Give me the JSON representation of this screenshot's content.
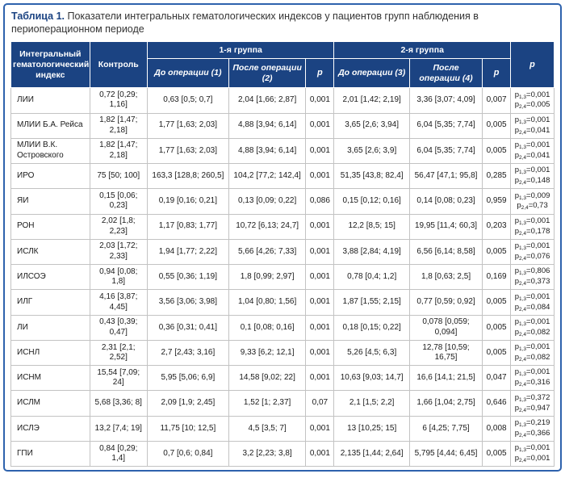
{
  "title": {
    "prefix": "Таблица 1.",
    "text": "Показатели интегральных гематологических индексов у пациентов групп наблюдения в периоперацион­ном периоде"
  },
  "colors": {
    "header_bg": "#1b4382",
    "frame_border": "#2e62ad",
    "grid_line": "#c3c3c3",
    "title_prefix": "#1b4382"
  },
  "table": {
    "columns": {
      "index": "Интегральный гематологический индекс",
      "control": "Контроль",
      "group1": "1-я группа",
      "group2": "2-я группа",
      "pre_op_1": "До операции (1)",
      "post_op_2": "После операции (2)",
      "pre_op_3": "До операции (3)",
      "post_op_4": "После операции (4)",
      "p": "p"
    },
    "p_compare": {
      "symbol": "p",
      "sub_first": "1,3",
      "sub_second": "2,4",
      "equals": "="
    },
    "rows": [
      {
        "index": "ЛИИ",
        "control": "0,72 [0,29; 1,16]",
        "g1_pre": "0,63 [0,5; 0,7]",
        "g1_post": "2,04 [1,66; 2,87]",
        "g1_p": "0,001",
        "g2_pre": "2,01 [1,42; 2,19]",
        "g2_post": "3,36 [3,07; 4,09]",
        "g2_p": "0,007",
        "p13": "0,001",
        "p24": "0,005"
      },
      {
        "index": "МЛИИ Б.А. Рейса",
        "control": "1,82 [1,47; 2,18]",
        "g1_pre": "1,77 [1,63; 2,03]",
        "g1_post": "4,88 [3,94; 6,14]",
        "g1_p": "0,001",
        "g2_pre": "3,65 [2,6; 3,94]",
        "g2_post": "6,04 [5,35; 7,74]",
        "g2_p": "0,005",
        "p13": "0,001",
        "p24": "0,041"
      },
      {
        "index": "МЛИИ В.К. Островского",
        "control": "1,82 [1,47; 2,18]",
        "g1_pre": "1,77 [1,63; 2,03]",
        "g1_post": "4,88 [3,94; 6,14]",
        "g1_p": "0,001",
        "g2_pre": "3,65 [2,6; 3,9]",
        "g2_post": "6,04 [5,35; 7,74]",
        "g2_p": "0,005",
        "p13": "0,001",
        "p24": "0,041"
      },
      {
        "index": "ИРО",
        "control": "75 [50; 100]",
        "g1_pre": "163,3 [128,8; 260,5]",
        "g1_post": "104,2 [77,2; 142,4]",
        "g1_p": "0,001",
        "g2_pre": "51,35 [43,8; 82,4]",
        "g2_post": "56,47 [47,1; 95,8]",
        "g2_p": "0,285",
        "p13": "0,001",
        "p24": "0,148"
      },
      {
        "index": "ЯИ",
        "control": "0,15 [0,06; 0,23]",
        "g1_pre": "0,19 [0,16; 0,21]",
        "g1_post": "0,13 [0,09; 0,22]",
        "g1_p": "0,086",
        "g2_pre": "0,15 [0,12; 0,16]",
        "g2_post": "0,14 [0,08; 0,23]",
        "g2_p": "0,959",
        "p13": "0,009",
        "p24": "0,73"
      },
      {
        "index": "РОН",
        "control": "2,02 [1,8; 2,23]",
        "g1_pre": "1,17 [0,83; 1,77]",
        "g1_post": "10,72 [6,13; 24,7]",
        "g1_p": "0,001",
        "g2_pre": "12,2 [8,5; 15]",
        "g2_post": "19,95 [11,4; 60,3]",
        "g2_p": "0,203",
        "p13": "0,001",
        "p24": "0,178"
      },
      {
        "index": "ИСЛК",
        "control": "2,03 [1,72; 2,33]",
        "g1_pre": "1,94 [1,77; 2,22]",
        "g1_post": "5,66 [4,26; 7,33]",
        "g1_p": "0,001",
        "g2_pre": "3,88 [2,84; 4,19]",
        "g2_post": "6,56 [6,14; 8,58]",
        "g2_p": "0,005",
        "p13": "0,001",
        "p24": "0,076"
      },
      {
        "index": "ИЛСОЭ",
        "control": "0,94 [0,08; 1,8]",
        "g1_pre": "0,55 [0,36; 1,19]",
        "g1_post": "1,8 [0,99; 2,97]",
        "g1_p": "0,001",
        "g2_pre": "0,78 [0,4; 1,2]",
        "g2_post": "1,8 [0,63; 2,5]",
        "g2_p": "0,169",
        "p13": "0,806",
        "p24": "0,373"
      },
      {
        "index": "ИЛГ",
        "control": "4,16 [3,87; 4,45]",
        "g1_pre": "3,56 [3,06; 3,98]",
        "g1_post": "1,04 [0,80; 1,56]",
        "g1_p": "0,001",
        "g2_pre": "1,87 [1,55; 2,15]",
        "g2_post": "0,77 [0,59; 0,92]",
        "g2_p": "0,005",
        "p13": "0,001",
        "p24": "0,084"
      },
      {
        "index": "ЛИ",
        "control": "0,43 [0,39; 0,47]",
        "g1_pre": "0,36 [0,31; 0,41]",
        "g1_post": "0,1 [0,08; 0,16]",
        "g1_p": "0,001",
        "g2_pre": "0,18 [0,15; 0,22]",
        "g2_post": "0,078 [0,059; 0,094]",
        "g2_p": "0,005",
        "p13": "0,001",
        "p24": "0,082"
      },
      {
        "index": "ИСНЛ",
        "control": "2,31 [2,1; 2,52]",
        "g1_pre": "2,7 [2,43; 3,16]",
        "g1_post": "9,33 [6,2; 12,1]",
        "g1_p": "0,001",
        "g2_pre": "5,26 [4,5; 6,3]",
        "g2_post": "12,78 [10,59; 16,75]",
        "g2_p": "0,005",
        "p13": "0,001",
        "p24": "0,082"
      },
      {
        "index": "ИСНМ",
        "control": "15,54 [7,09; 24]",
        "g1_pre": "5,95 [5,06; 6,9]",
        "g1_post": "14,58 [9,02; 22]",
        "g1_p": "0,001",
        "g2_pre": "10,63 [9,03; 14,7]",
        "g2_post": "16,6 [14,1; 21,5]",
        "g2_p": "0,047",
        "p13": "0,001",
        "p24": "0,316"
      },
      {
        "index": "ИСЛМ",
        "control": "5,68 [3,36; 8]",
        "g1_pre": "2,09 [1,9; 2,45]",
        "g1_post": "1,52 [1; 2,37]",
        "g1_p": "0,07",
        "g2_pre": "2,1 [1,5; 2,2]",
        "g2_post": "1,66 [1,04; 2,75]",
        "g2_p": "0,646",
        "p13": "0,372",
        "p24": "0,947"
      },
      {
        "index": "ИСЛЭ",
        "control": "13,2 [7,4; 19]",
        "g1_pre": "11,75 [10; 12,5]",
        "g1_post": "4,5 [3,5; 7]",
        "g1_p": "0,001",
        "g2_pre": "13 [10,25; 15]",
        "g2_post": "6 [4,25; 7,75]",
        "g2_p": "0,008",
        "p13": "0,219",
        "p24": "0,366"
      },
      {
        "index": "ГПИ",
        "control": "0,84 [0,29; 1,4]",
        "g1_pre": "0,7 [0,6; 0,84]",
        "g1_post": "3,2 [2,23; 3,8]",
        "g1_p": "0,001",
        "g2_pre": "2,135 [1,44; 2,64]",
        "g2_post": "5,795 [4,44; 6,45]",
        "g2_p": "0,005",
        "p13": "0,001",
        "p24": "0,001"
      }
    ]
  }
}
